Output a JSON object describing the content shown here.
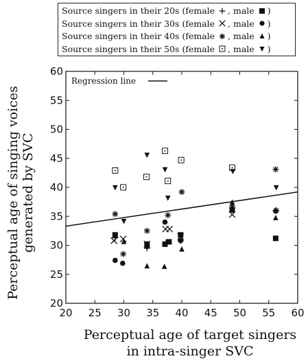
{
  "legend": {
    "rows": [
      {
        "label": "Source singers in their 20s (female",
        "female_marker": "plus",
        "sep": ", male",
        "male_marker": "square",
        "close": ")"
      },
      {
        "label": "Source singers in their 30s (female",
        "female_marker": "x",
        "sep": ", male",
        "male_marker": "circle",
        "close": ")"
      },
      {
        "label": "Source singers in their 40s (female",
        "female_marker": "asterisk",
        "sep": ", male",
        "male_marker": "triangle-up",
        "close": ")"
      },
      {
        "label": "Source singers in their 50s (female",
        "female_marker": "square-dot",
        "sep": ", male",
        "male_marker": "triangle-down",
        "close": ")"
      }
    ]
  },
  "chart_data": {
    "type": "scatter",
    "title": "",
    "xlabel": [
      "Perceptual age of target singers",
      "in intra-singer SVC"
    ],
    "ylabel": [
      "Perceptual age of singing voices",
      "generated by SVC"
    ],
    "xlim": [
      20,
      60
    ],
    "ylim": [
      20,
      60
    ],
    "xticks": [
      20,
      25,
      30,
      35,
      40,
      45,
      50,
      55,
      60
    ],
    "yticks": [
      20,
      25,
      30,
      35,
      40,
      45,
      50,
      55,
      60
    ],
    "grid": false,
    "regression": {
      "label": "Regression line",
      "x": [
        20,
        60
      ],
      "y": [
        33.3,
        39.2
      ]
    },
    "series": [
      {
        "name": "Source singers in their 20s (female)",
        "marker": "plus",
        "points": [
          [
            28.5,
            31.3
          ],
          [
            34,
            29.5
          ],
          [
            37.3,
            30.5
          ],
          [
            39.8,
            30.8
          ],
          [
            48.7,
            36.5
          ],
          [
            56.2,
            36
          ]
        ]
      },
      {
        "name": "Source singers in their 20s (male)",
        "marker": "square",
        "points": [
          [
            28.5,
            31.8
          ],
          [
            34,
            30.2
          ],
          [
            37.1,
            30.2
          ],
          [
            37.8,
            30.6
          ],
          [
            39.8,
            31.8
          ],
          [
            48.7,
            36.1
          ],
          [
            56.2,
            31.2
          ]
        ]
      },
      {
        "name": "Source singers in their 30s (female)",
        "marker": "x",
        "points": [
          [
            28.3,
            30.8
          ],
          [
            29.9,
            31.1
          ],
          [
            34,
            30.2
          ],
          [
            37.2,
            32.8
          ],
          [
            37.9,
            32.8
          ],
          [
            39.8,
            31.5
          ],
          [
            48.7,
            35.3
          ]
        ]
      },
      {
        "name": "Source singers in their 30s (male)",
        "marker": "circle",
        "points": [
          [
            28.5,
            27.4
          ],
          [
            29.8,
            26.9
          ],
          [
            34,
            29.8
          ],
          [
            37.1,
            34
          ],
          [
            39.8,
            30.8
          ],
          [
            48.7,
            36.2
          ],
          [
            56.2,
            35.9
          ]
        ]
      },
      {
        "name": "Source singers in their 40s (female)",
        "marker": "asterisk",
        "points": [
          [
            28.5,
            35.4
          ],
          [
            29.9,
            28.5
          ],
          [
            34,
            32.5
          ],
          [
            37.6,
            35.2
          ],
          [
            40,
            39.2
          ],
          [
            48.7,
            36.8
          ],
          [
            56.2,
            43.1
          ],
          [
            56.3,
            36
          ]
        ]
      },
      {
        "name": "Source singers in their 40s (male)",
        "marker": "triangle-up",
        "points": [
          [
            30,
            30.6
          ],
          [
            34,
            26.4
          ],
          [
            37,
            26.3
          ],
          [
            40,
            29.3
          ],
          [
            48.7,
            37.4
          ],
          [
            56.2,
            34.7
          ]
        ]
      },
      {
        "name": "Source singers in their 50s (female)",
        "marker": "square-dot",
        "points": [
          [
            28.5,
            42.9
          ],
          [
            29.9,
            40
          ],
          [
            33.9,
            41.8
          ],
          [
            37.1,
            46.3
          ],
          [
            37.6,
            41.1
          ],
          [
            39.9,
            44.7
          ],
          [
            48.7,
            43.4
          ]
        ]
      },
      {
        "name": "Source singers in their 50s (male)",
        "marker": "triangle-down",
        "points": [
          [
            28.5,
            40
          ],
          [
            30,
            34.2
          ],
          [
            34,
            45.6
          ],
          [
            37.1,
            43.1
          ],
          [
            37.6,
            38.2
          ],
          [
            48.8,
            42.8
          ],
          [
            56.3,
            40
          ]
        ]
      }
    ]
  }
}
